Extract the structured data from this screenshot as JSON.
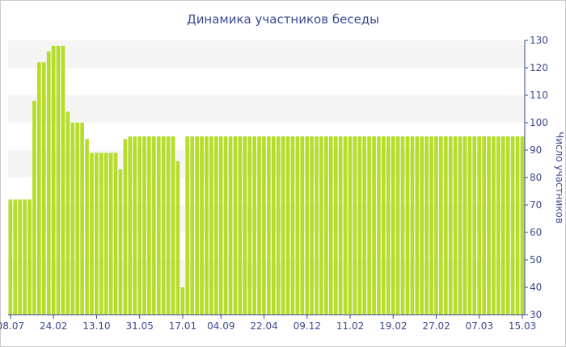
{
  "chart_data": {
    "type": "bar",
    "title": "Динамика участников беседы",
    "xlabel": "",
    "ylabel": "Число участников",
    "ylim": [
      30,
      130
    ],
    "yticks": [
      30,
      40,
      50,
      60,
      70,
      80,
      90,
      100,
      110,
      120,
      130
    ],
    "y_axis_side": "right",
    "grid": "alternating horizontal bands",
    "bar_color": "#b6dd2c",
    "band_color": "#f5f5f5",
    "text_color": "#3b4a8f",
    "xticks": [
      {
        "label": "08.07",
        "index": 0
      },
      {
        "label": "24.02",
        "index": 9
      },
      {
        "label": "13.10",
        "index": 18
      },
      {
        "label": "31.05",
        "index": 27
      },
      {
        "label": "17.01",
        "index": 36
      },
      {
        "label": "04.09",
        "index": 44
      },
      {
        "label": "22.04",
        "index": 53
      },
      {
        "label": "09.12",
        "index": 62
      },
      {
        "label": "11.02",
        "index": 71
      },
      {
        "label": "19.02",
        "index": 80
      },
      {
        "label": "27.02",
        "index": 89
      },
      {
        "label": "07.03",
        "index": 98
      },
      {
        "label": "15.03",
        "index": 107
      }
    ],
    "values": [
      72,
      72,
      72,
      72,
      72,
      108,
      122,
      122,
      126,
      128,
      128,
      128,
      104,
      100,
      100,
      100,
      94,
      89,
      89,
      89,
      89,
      89,
      89,
      83,
      94,
      95,
      95,
      95,
      95,
      95,
      95,
      95,
      95,
      95,
      95,
      86,
      40,
      95,
      95,
      95,
      95,
      95,
      95,
      95,
      95,
      95,
      95,
      95,
      95,
      95,
      95,
      95,
      95,
      95,
      95,
      95,
      95,
      95,
      95,
      95,
      95,
      95,
      95,
      95,
      95,
      95,
      95,
      95,
      95,
      95,
      95,
      95,
      95,
      95,
      95,
      95,
      95,
      95,
      95,
      95,
      95,
      95,
      95,
      95,
      95,
      95,
      95,
      95,
      95,
      95,
      95,
      95,
      95,
      95,
      95,
      95,
      95,
      95,
      95,
      95,
      95,
      95,
      95,
      95,
      95,
      95,
      95,
      95
    ],
    "values_segment_b_note": ""
  }
}
